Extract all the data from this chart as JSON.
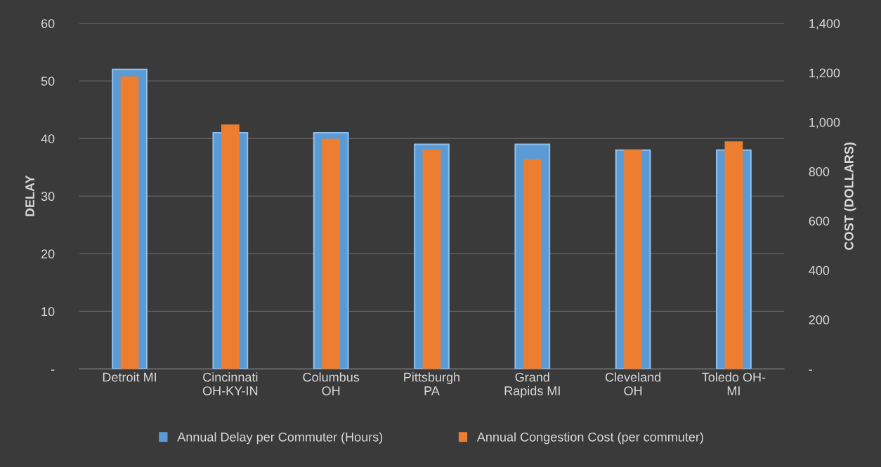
{
  "chart_data": {
    "type": "bar",
    "categories": [
      "Detroit MI",
      "Cincinnati\nOH-KY-IN",
      "Columbus\nOH",
      "Pittsburgh\nPA",
      "Grand\nRapids MI",
      "Cleveland\nOH",
      "Toledo OH-\nMI"
    ],
    "series": [
      {
        "name": "Annual Delay per Commuter (Hours)",
        "color": "#5b9bd5",
        "values": [
          52,
          41,
          41,
          39,
          39,
          38,
          38
        ]
      },
      {
        "name": "Annual Congestion Cost (per commuter)",
        "color": "#ed7d31",
        "axis": "y2",
        "values": [
          1185,
          990,
          933,
          888,
          850,
          888,
          922
        ]
      }
    ],
    "ylabel": "DELAY",
    "y2label": "COST (DOLLARS)",
    "ylim": [
      0,
      60
    ],
    "yticks": [
      {
        "value": 0,
        "label": "-"
      },
      10,
      20,
      30,
      40,
      50,
      60
    ],
    "y2lim": [
      0,
      1400
    ],
    "y2ticks": [
      {
        "value": 0,
        "label": "-"
      },
      {
        "value": 200,
        "label": "200"
      },
      {
        "value": 400,
        "label": "400"
      },
      {
        "value": 600,
        "label": "600"
      },
      {
        "value": 800,
        "label": "800"
      },
      {
        "value": 1000,
        "label": "1,000"
      },
      {
        "value": 1200,
        "label": "1,200"
      },
      {
        "value": 1400,
        "label": "1,400"
      }
    ],
    "grid": "y",
    "legend": "bottom"
  }
}
